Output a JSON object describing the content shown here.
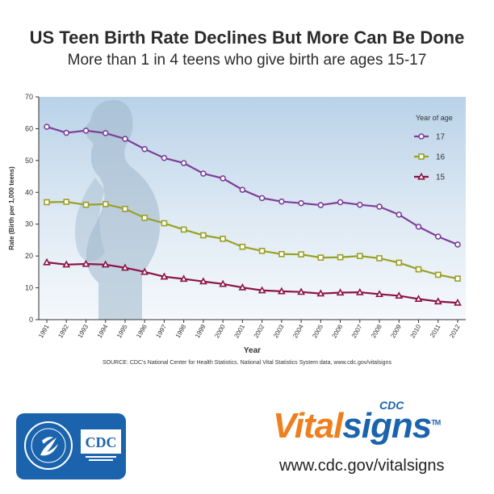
{
  "title": "US Teen Birth Rate Declines But More Can Be Done",
  "subtitle": "More than 1 in 4 teens who give birth are ages 15-17",
  "chart_data": {
    "type": "line",
    "x": [
      "1991",
      "1992",
      "1993",
      "1994",
      "1995",
      "1996",
      "1997",
      "1998",
      "1999",
      "2000",
      "2001",
      "2002",
      "2003",
      "2004",
      "2005",
      "2006",
      "2007",
      "2008",
      "2009",
      "2010",
      "2011",
      "2012"
    ],
    "xlabel": "Year",
    "ylabel": "Rate (Birth per 1,000 teens)",
    "ylim": [
      0,
      70
    ],
    "yticks": [
      0,
      10,
      20,
      30,
      40,
      50,
      60,
      70
    ],
    "grid": false,
    "legend_title": "Year of age",
    "legend_position": "top-right",
    "series": [
      {
        "name": "17",
        "color": "#7d3f98",
        "marker": "circle",
        "values": [
          60.6,
          58.7,
          59.4,
          58.6,
          56.8,
          53.6,
          50.8,
          49.2,
          45.9,
          44.4,
          40.8,
          38.2,
          37.1,
          36.6,
          36.0,
          36.9,
          36.1,
          35.5,
          33.0,
          29.2,
          26.1,
          23.6
        ]
      },
      {
        "name": "16",
        "color": "#9aa024",
        "marker": "square",
        "values": [
          36.9,
          37.0,
          36.1,
          36.3,
          34.8,
          32.0,
          30.3,
          28.3,
          26.5,
          25.4,
          22.9,
          21.6,
          20.6,
          20.5,
          19.5,
          19.6,
          20.0,
          19.3,
          17.9,
          15.8,
          14.1,
          12.9
        ]
      },
      {
        "name": "15",
        "color": "#8b1346",
        "marker": "triangle",
        "values": [
          18.0,
          17.3,
          17.5,
          17.3,
          16.3,
          15.0,
          13.5,
          12.8,
          12.0,
          11.2,
          10.1,
          9.2,
          8.9,
          8.7,
          8.2,
          8.5,
          8.6,
          8.0,
          7.5,
          6.5,
          5.7,
          5.3
        ]
      }
    ]
  },
  "source": "SOURCE: CDC's National Center for Health Statistics. National Vital Statistics System data, www.cdc.gov/vitalsigns",
  "footer": {
    "cdc_badge": "CDC",
    "vitalsigns_prefix": "CDC",
    "vital": "Vital",
    "signs": "signs",
    "tm": "TM",
    "url": "www.cdc.gov/vitalsigns"
  }
}
